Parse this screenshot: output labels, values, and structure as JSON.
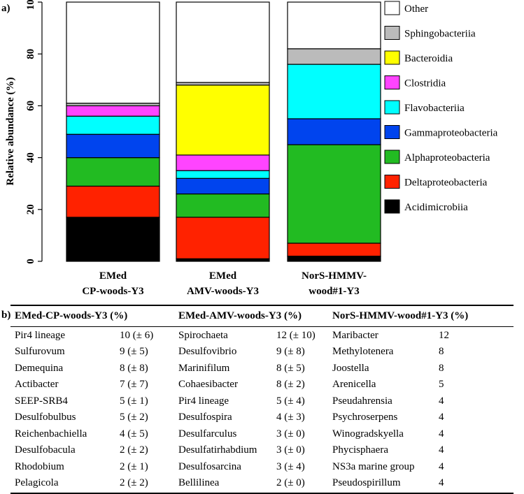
{
  "panel_a_label": "a)",
  "panel_b_label": "b)",
  "chart_data": {
    "type": "bar",
    "stacked": true,
    "categories": [
      [
        "EMed",
        "CP-woods-Y3"
      ],
      [
        "EMed",
        "AMV-woods-Y3"
      ],
      [
        "NorS-HMMV-",
        "wood#1-Y3"
      ]
    ],
    "ylabel": "Relative abundance (%)",
    "ylim": [
      0,
      100
    ],
    "yticks": [
      0,
      20,
      40,
      60,
      80,
      100
    ],
    "legend_position": "right",
    "series": [
      {
        "name": "Acidimicrobiia",
        "color": "#000000",
        "values": [
          17,
          1,
          2
        ]
      },
      {
        "name": "Deltaproteobacteria",
        "color": "#ff2200",
        "values": [
          12,
          16,
          5
        ]
      },
      {
        "name": "Alphaproteobacteria",
        "color": "#22bb22",
        "values": [
          11,
          9,
          38
        ]
      },
      {
        "name": "Gammaproteobacteria",
        "color": "#0044ee",
        "values": [
          9,
          6,
          10
        ]
      },
      {
        "name": "Flavobacteriia",
        "color": "#00ffff",
        "values": [
          7,
          3,
          21
        ]
      },
      {
        "name": "Clostridia",
        "color": "#ff44ff",
        "values": [
          4,
          6,
          0
        ]
      },
      {
        "name": "Bacteroidia",
        "color": "#ffff00",
        "values": [
          0,
          27,
          0
        ]
      },
      {
        "name": "Sphingobacteriia",
        "color": "#bbbbbb",
        "values": [
          1,
          1,
          6
        ]
      },
      {
        "name": "Other",
        "color": "#ffffff",
        "values": [
          39,
          31,
          18
        ]
      }
    ]
  },
  "table": {
    "headers": [
      "EMed-CP-woods-Y3 (%)",
      "EMed-AMV-woods-Y3 (%)",
      "NorS-HMMV-wood#1-Y3 (%)"
    ],
    "rows": [
      [
        "Pir4 lineage",
        "10 (± 6)",
        "Spirochaeta",
        "12 (± 10)",
        "Maribacter",
        "12"
      ],
      [
        "Sulfurovum",
        "9 (± 5)",
        "Desulfovibrio",
        "9 (± 8)",
        "Methylotenera",
        "8"
      ],
      [
        "Demequina",
        "8 (± 8)",
        "Marinifilum",
        "8 (± 5)",
        "Joostella",
        "8"
      ],
      [
        "Actibacter",
        "7 (± 7)",
        "Cohaesibacter",
        "8 (± 2)",
        "Arenicella",
        "5"
      ],
      [
        "SEEP-SRB4",
        "5 (± 1)",
        "Pir4 lineage",
        "5 (± 4)",
        "Pseudahrensia",
        "4"
      ],
      [
        "Desulfobulbus",
        "5 (± 2)",
        "Desulfospira",
        "4 (± 3)",
        "Psychroserpens",
        "4"
      ],
      [
        "Reichenbachiella",
        "4 (± 5)",
        "Desulfarculus",
        "3 (± 0)",
        "Winogradskyella",
        "4"
      ],
      [
        "Desulfobacula",
        "2 (± 2)",
        "Desulfatirhabdium",
        "3 (± 0)",
        "Phycisphaera",
        "4"
      ],
      [
        "Rhodobium",
        "2 (± 1)",
        "Desulfosarcina",
        "3 (± 4)",
        "NS3a marine group",
        "4"
      ],
      [
        "Pelagicola",
        "2 (± 2)",
        "Bellilinea",
        "2 (± 0)",
        "Pseudospirillum",
        "4"
      ]
    ]
  }
}
